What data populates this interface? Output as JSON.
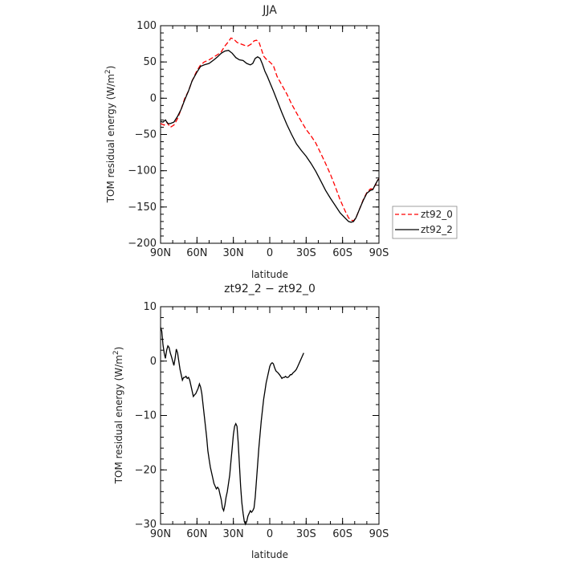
{
  "chart_data": [
    {
      "type": "line",
      "title": "JJA",
      "xlabel": "latitude",
      "ylabel": "TOM residual energy (W/m²)",
      "ylabel_main": "TOM residual energy (W/m",
      "ylabel_sup": "2",
      "ylabel_end": ")",
      "xlim": [
        90,
        -90
      ],
      "ylim": [
        -200,
        100
      ],
      "x_ticks": [
        90,
        60,
        30,
        0,
        -30,
        -60,
        -90
      ],
      "x_tick_labels": [
        "90N",
        "60N",
        "30N",
        "0",
        "30S",
        "60S",
        "90S"
      ],
      "y_ticks": [
        100,
        50,
        0,
        -50,
        -100,
        -150,
        -200
      ],
      "y_tick_labels": [
        "100",
        "50",
        "0",
        "−50",
        "−100",
        "−150",
        "−200"
      ],
      "legend_position": "right, outside plot",
      "series": [
        {
          "name": "zt92_0",
          "color": "#ff0000",
          "style": "dashed",
          "points": [
            [
              90,
              -35
            ],
            [
              87,
              -37
            ],
            [
              85,
              -33
            ],
            [
              82,
              -40
            ],
            [
              79,
              -37
            ],
            [
              76,
              -28
            ],
            [
              73,
              -15
            ],
            [
              70,
              0
            ],
            [
              67,
              10
            ],
            [
              64,
              24
            ],
            [
              60,
              38
            ],
            [
              57,
              46
            ],
            [
              54,
              50
            ],
            [
              50,
              53
            ],
            [
              46,
              57
            ],
            [
              43,
              60
            ],
            [
              40,
              64
            ],
            [
              37,
              72
            ],
            [
              34,
              78
            ],
            [
              32,
              83
            ],
            [
              30,
              82
            ],
            [
              27,
              77
            ],
            [
              24,
              75
            ],
            [
              21,
              73
            ],
            [
              18,
              72
            ],
            [
              15,
              75
            ],
            [
              13,
              79
            ],
            [
              11,
              80
            ],
            [
              9,
              78
            ],
            [
              7,
              68
            ],
            [
              5,
              58
            ],
            [
              3,
              54
            ],
            [
              0,
              50
            ],
            [
              -3,
              45
            ],
            [
              -6,
              30
            ],
            [
              -10,
              18
            ],
            [
              -14,
              6
            ],
            [
              -18,
              -8
            ],
            [
              -22,
              -20
            ],
            [
              -26,
              -32
            ],
            [
              -30,
              -43
            ],
            [
              -34,
              -52
            ],
            [
              -38,
              -62
            ],
            [
              -42,
              -76
            ],
            [
              -46,
              -90
            ],
            [
              -50,
              -105
            ],
            [
              -54,
              -122
            ],
            [
              -58,
              -140
            ],
            [
              -62,
              -155
            ],
            [
              -65,
              -165
            ],
            [
              -67,
              -168
            ],
            [
              -69,
              -169
            ],
            [
              -71,
              -165
            ],
            [
              -74,
              -153
            ],
            [
              -77,
              -140
            ],
            [
              -80,
              -130
            ],
            [
              -83,
              -125
            ],
            [
              -85,
              -125
            ],
            [
              -87,
              -120
            ],
            [
              -89,
              -113
            ],
            [
              -90,
              -111
            ]
          ]
        },
        {
          "name": "zt92_2",
          "color": "#000000",
          "style": "solid",
          "points": [
            [
              90,
              -32
            ],
            [
              88,
              -33
            ],
            [
              86,
              -30
            ],
            [
              84,
              -35
            ],
            [
              82,
              -35
            ],
            [
              79,
              -33
            ],
            [
              76,
              -25
            ],
            [
              73,
              -15
            ],
            [
              70,
              -2
            ],
            [
              67,
              10
            ],
            [
              64,
              24
            ],
            [
              60,
              36
            ],
            [
              57,
              44
            ],
            [
              54,
              46
            ],
            [
              50,
              48
            ],
            [
              46,
              53
            ],
            [
              43,
              57
            ],
            [
              40,
              62
            ],
            [
              37,
              65
            ],
            [
              34,
              66
            ],
            [
              31,
              62
            ],
            [
              28,
              56
            ],
            [
              25,
              53
            ],
            [
              22,
              52
            ],
            [
              19,
              48
            ],
            [
              16,
              46
            ],
            [
              14,
              48
            ],
            [
              12,
              55
            ],
            [
              10,
              57
            ],
            [
              8,
              55
            ],
            [
              6,
              47
            ],
            [
              4,
              37
            ],
            [
              2,
              30
            ],
            [
              0,
              22
            ],
            [
              -3,
              10
            ],
            [
              -6,
              -3
            ],
            [
              -10,
              -20
            ],
            [
              -14,
              -36
            ],
            [
              -18,
              -50
            ],
            [
              -22,
              -63
            ],
            [
              -26,
              -72
            ],
            [
              -30,
              -80
            ],
            [
              -34,
              -90
            ],
            [
              -38,
              -101
            ],
            [
              -42,
              -114
            ],
            [
              -46,
              -127
            ],
            [
              -50,
              -138
            ],
            [
              -54,
              -148
            ],
            [
              -58,
              -158
            ],
            [
              -62,
              -165
            ],
            [
              -65,
              -170
            ],
            [
              -67,
              -171
            ],
            [
              -69,
              -170
            ],
            [
              -71,
              -165
            ],
            [
              -74,
              -153
            ],
            [
              -77,
              -141
            ],
            [
              -80,
              -131
            ],
            [
              -83,
              -127
            ],
            [
              -85,
              -126
            ],
            [
              -87,
              -119
            ],
            [
              -89,
              -113
            ],
            [
              -90,
              -111
            ]
          ]
        }
      ]
    },
    {
      "type": "line",
      "title": "zt92_2 − zt92_0",
      "xlabel": "latitude",
      "ylabel": "TOM residual energy (W/m²)",
      "ylabel_main": "TOM residual energy (W/m",
      "ylabel_sup": "2",
      "ylabel_end": ")",
      "xlim": [
        90,
        -90
      ],
      "ylim": [
        -30,
        10
      ],
      "x_ticks": [
        90,
        60,
        30,
        0,
        -30,
        -60,
        -90
      ],
      "x_tick_labels": [
        "90N",
        "60N",
        "30N",
        "0",
        "30S",
        "60S",
        "90S"
      ],
      "y_ticks": [
        10,
        0,
        -10,
        -20,
        -30
      ],
      "y_tick_labels": [
        "10",
        "0",
        "−10",
        "−20",
        "−30"
      ],
      "series": [
        {
          "color": "#000000",
          "style": "solid",
          "points": [
            [
              90,
              6.2
            ],
            [
              89,
              5.5
            ],
            [
              88,
              3
            ],
            [
              87,
              1.5
            ],
            [
              86,
              0.5
            ],
            [
              85,
              2
            ],
            [
              84,
              2.8
            ],
            [
              83,
              2.5
            ],
            [
              82,
              1.5
            ],
            [
              81,
              0.8
            ],
            [
              80,
              0
            ],
            [
              79,
              -0.8
            ],
            [
              78,
              0.5
            ],
            [
              77,
              2.2
            ],
            [
              76,
              1.5
            ],
            [
              75,
              0
            ],
            [
              74,
              -1.5
            ],
            [
              73,
              -2.5
            ],
            [
              72,
              -3.5
            ],
            [
              71,
              -3
            ],
            [
              70,
              -3
            ],
            [
              69,
              -2.8
            ],
            [
              68,
              -3.2
            ],
            [
              67,
              -3
            ],
            [
              66,
              -3.5
            ],
            [
              65,
              -4.5
            ],
            [
              64,
              -5.5
            ],
            [
              63,
              -6.5
            ],
            [
              62,
              -6.2
            ],
            [
              61,
              -6
            ],
            [
              60,
              -5.5
            ],
            [
              59,
              -5
            ],
            [
              58,
              -4.2
            ],
            [
              57,
              -4.8
            ],
            [
              56,
              -6
            ],
            [
              55,
              -8
            ],
            [
              54,
              -10
            ],
            [
              53,
              -12
            ],
            [
              52,
              -14
            ],
            [
              51,
              -16.5
            ],
            [
              50,
              -18
            ],
            [
              49,
              -19.5
            ],
            [
              48,
              -20.5
            ],
            [
              47,
              -21.5
            ],
            [
              46,
              -22.5
            ],
            [
              45,
              -23
            ],
            [
              44,
              -23.5
            ],
            [
              43,
              -23.2
            ],
            [
              42,
              -23.5
            ],
            [
              41,
              -24.5
            ],
            [
              40,
              -25.5
            ],
            [
              39,
              -27
            ],
            [
              38,
              -27.5
            ],
            [
              37,
              -26.5
            ],
            [
              36,
              -25
            ],
            [
              35,
              -24
            ],
            [
              34,
              -22.5
            ],
            [
              33,
              -21
            ],
            [
              32,
              -18.5
            ],
            [
              31,
              -16
            ],
            [
              30,
              -13.5
            ],
            [
              29,
              -12
            ],
            [
              28,
              -11.5
            ],
            [
              27,
              -12
            ],
            [
              26,
              -15
            ],
            [
              25,
              -19
            ],
            [
              24,
              -23
            ],
            [
              23,
              -26
            ],
            [
              22,
              -28
            ],
            [
              21,
              -29.5
            ],
            [
              20,
              -30
            ],
            [
              19,
              -29.5
            ],
            [
              18,
              -28.5
            ],
            [
              17,
              -28
            ],
            [
              16,
              -27.5
            ],
            [
              15,
              -27.8
            ],
            [
              14,
              -27.5
            ],
            [
              13,
              -27
            ],
            [
              12,
              -25
            ],
            [
              11,
              -22
            ],
            [
              10,
              -19
            ],
            [
              9,
              -16
            ],
            [
              8,
              -13.5
            ],
            [
              7,
              -11
            ],
            [
              6,
              -9
            ],
            [
              5,
              -7
            ],
            [
              4,
              -5.5
            ],
            [
              3,
              -4
            ],
            [
              2,
              -3
            ],
            [
              1,
              -2
            ],
            [
              0,
              -1
            ],
            [
              -1,
              -0.5
            ],
            [
              -2,
              -0.3
            ],
            [
              -3,
              -0.5
            ],
            [
              -4,
              -1.2
            ],
            [
              -5,
              -1.8
            ],
            [
              -6,
              -2
            ],
            [
              -7,
              -2.2
            ],
            [
              -8,
              -2.5
            ],
            [
              -9,
              -2.8
            ],
            [
              -10,
              -3.2
            ],
            [
              -11,
              -3
            ],
            [
              -12,
              -3
            ],
            [
              -13,
              -2.8
            ],
            [
              -14,
              -3
            ],
            [
              -15,
              -3
            ],
            [
              -16,
              -2.8
            ],
            [
              -17,
              -2.5
            ],
            [
              -18,
              -2.5
            ],
            [
              -19,
              -2.2
            ],
            [
              -20,
              -2
            ],
            [
              -21,
              -1.8
            ],
            [
              -22,
              -1.5
            ],
            [
              -23,
              -1
            ],
            [
              -24,
              -0.5
            ],
            [
              -25,
              0
            ],
            [
              -26,
              0.5
            ],
            [
              -27,
              1
            ],
            [
              -28,
              1.5
            ]
          ]
        }
      ]
    }
  ]
}
